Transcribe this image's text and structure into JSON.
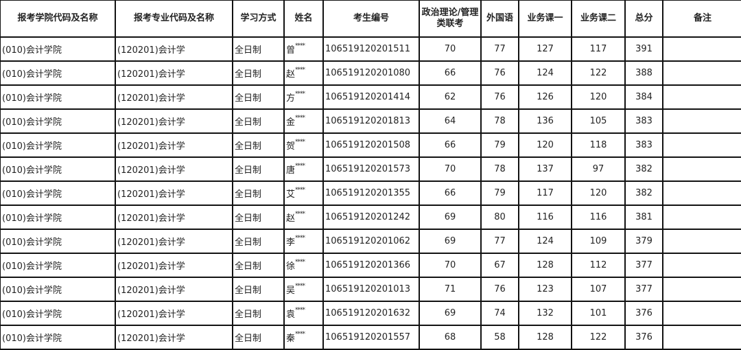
{
  "headers": [
    "报考学院代码及名称",
    "报考专业代码及名称",
    "学习方式",
    "姓名",
    "考生编号",
    "政治理论/管理类联考",
    "外国语",
    "业务课一",
    "业务课二",
    "总分",
    "备注"
  ],
  "rows": [
    {
      "college": "(010)会计学院",
      "major": "(120201)会计学",
      "mode": "全日制",
      "name": "曾",
      "mask": "****",
      "id": "106519120201511",
      "politics": "70",
      "foreign": "77",
      "course1": "127",
      "course2": "117",
      "total": "391",
      "note": ""
    },
    {
      "college": "(010)会计学院",
      "major": "(120201)会计学",
      "mode": "全日制",
      "name": "赵",
      "mask": "****",
      "id": "106519120201080",
      "politics": "66",
      "foreign": "76",
      "course1": "124",
      "course2": "122",
      "total": "388",
      "note": ""
    },
    {
      "college": "(010)会计学院",
      "major": "(120201)会计学",
      "mode": "全日制",
      "name": "方",
      "mask": "****",
      "id": "106519120201414",
      "politics": "62",
      "foreign": "76",
      "course1": "126",
      "course2": "120",
      "total": "384",
      "note": ""
    },
    {
      "college": "(010)会计学院",
      "major": "(120201)会计学",
      "mode": "全日制",
      "name": "金",
      "mask": "****",
      "id": "106519120201813",
      "politics": "64",
      "foreign": "78",
      "course1": "136",
      "course2": "105",
      "total": "383",
      "note": ""
    },
    {
      "college": "(010)会计学院",
      "major": "(120201)会计学",
      "mode": "全日制",
      "name": "贺",
      "mask": "****",
      "id": "106519120201508",
      "politics": "66",
      "foreign": "79",
      "course1": "120",
      "course2": "118",
      "total": "383",
      "note": ""
    },
    {
      "college": "(010)会计学院",
      "major": "(120201)会计学",
      "mode": "全日制",
      "name": "唐",
      "mask": "****",
      "id": "106519120201573",
      "politics": "70",
      "foreign": "78",
      "course1": "137",
      "course2": "97",
      "total": "382",
      "note": ""
    },
    {
      "college": "(010)会计学院",
      "major": "(120201)会计学",
      "mode": "全日制",
      "name": "艾",
      "mask": "****",
      "id": "106519120201355",
      "politics": "66",
      "foreign": "79",
      "course1": "117",
      "course2": "120",
      "total": "382",
      "note": ""
    },
    {
      "college": "(010)会计学院",
      "major": "(120201)会计学",
      "mode": "全日制",
      "name": "赵",
      "mask": "****",
      "id": "106519120201242",
      "politics": "69",
      "foreign": "80",
      "course1": "116",
      "course2": "116",
      "total": "381",
      "note": ""
    },
    {
      "college": "(010)会计学院",
      "major": "(120201)会计学",
      "mode": "全日制",
      "name": "李",
      "mask": "****",
      "id": "106519120201062",
      "politics": "69",
      "foreign": "77",
      "course1": "124",
      "course2": "109",
      "total": "379",
      "note": ""
    },
    {
      "college": "(010)会计学院",
      "major": "(120201)会计学",
      "mode": "全日制",
      "name": "徐",
      "mask": "****",
      "id": "106519120201366",
      "politics": "70",
      "foreign": "67",
      "course1": "128",
      "course2": "112",
      "total": "377",
      "note": ""
    },
    {
      "college": "(010)会计学院",
      "major": "(120201)会计学",
      "mode": "全日制",
      "name": "吴",
      "mask": "****",
      "id": "106519120201013",
      "politics": "71",
      "foreign": "76",
      "course1": "123",
      "course2": "107",
      "total": "377",
      "note": ""
    },
    {
      "college": "(010)会计学院",
      "major": "(120201)会计学",
      "mode": "全日制",
      "name": "袁",
      "mask": "****",
      "id": "106519120201632",
      "politics": "69",
      "foreign": "74",
      "course1": "132",
      "course2": "101",
      "total": "376",
      "note": ""
    },
    {
      "college": "(010)会计学院",
      "major": "(120201)会计学",
      "mode": "全日制",
      "name": "秦",
      "mask": "****",
      "id": "106519120201557",
      "politics": "68",
      "foreign": "58",
      "course1": "128",
      "course2": "122",
      "total": "376",
      "note": ""
    }
  ]
}
